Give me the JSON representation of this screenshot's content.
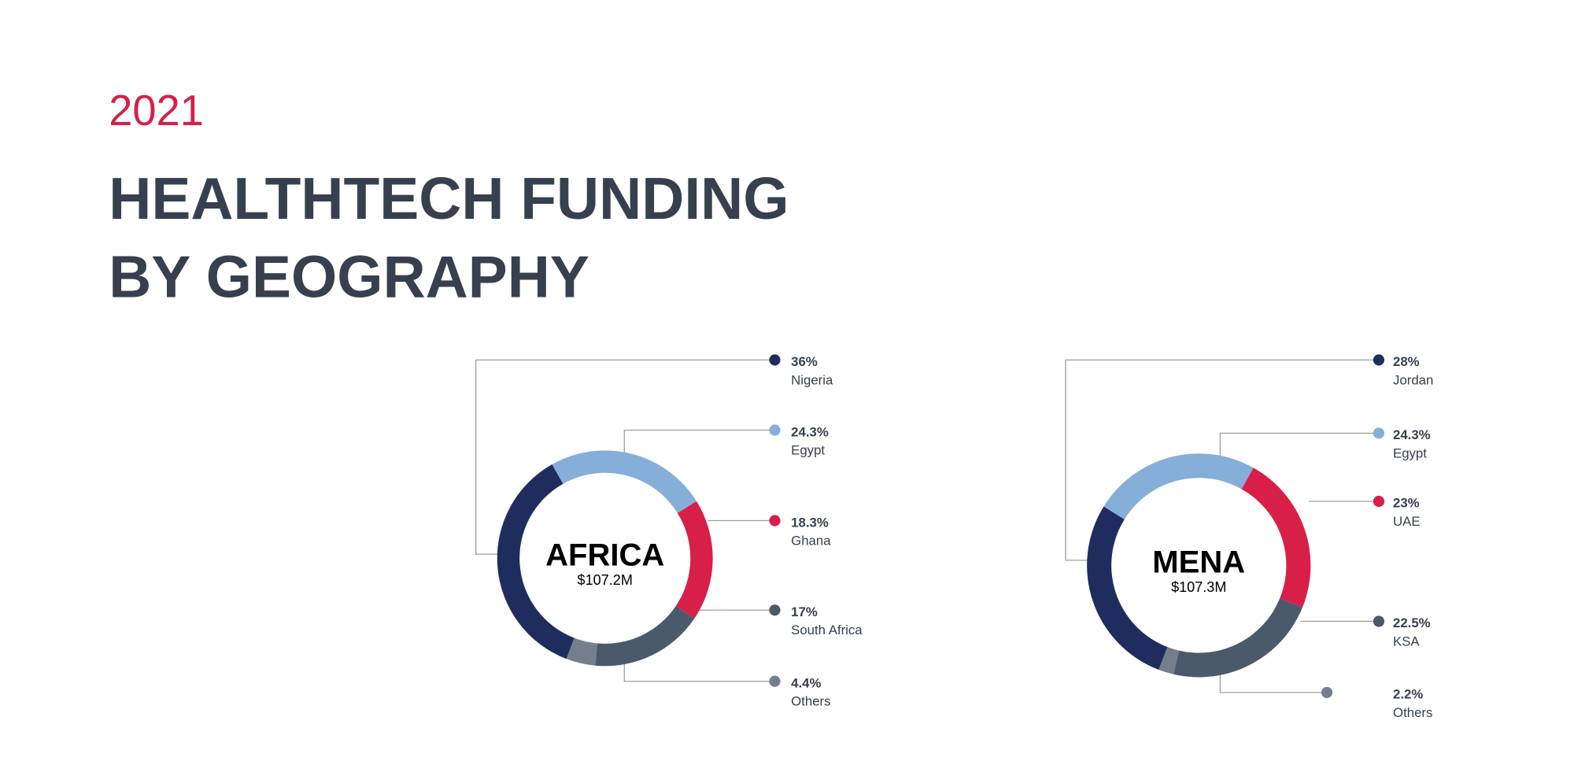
{
  "header": {
    "kicker": "2021",
    "title": [
      "HEALTHTECH FUNDING",
      "BY GEOGRAPHY"
    ]
  },
  "chart_data": [
    {
      "type": "donut",
      "center_title": "AFRICA",
      "center_label": "$107.2M",
      "categories": [
        "Nigeria",
        "Egypt",
        "Ghana",
        "South Africa",
        "Others"
      ],
      "values": [
        36,
        24.3,
        18.3,
        17,
        4.4
      ],
      "value_labels": [
        "36%",
        "24.3%",
        "18.3%",
        "17%",
        "4.4%"
      ],
      "colors": [
        "#1f2d5e",
        "#85afd9",
        "#d81f48",
        "#4a5a6a",
        "#737f8c"
      ]
    },
    {
      "type": "donut",
      "center_title": "MENA",
      "center_label": "$107.3M",
      "categories": [
        "Jordan",
        "Egypt",
        "UAE",
        "KSA",
        "Others"
      ],
      "values": [
        28,
        24.3,
        23,
        22.5,
        2.2
      ],
      "value_labels": [
        "28%",
        "24.3%",
        "23%",
        "22.5%",
        "2.2%"
      ],
      "colors": [
        "#1f2d5e",
        "#85afd9",
        "#d81f48",
        "#4a5a6a",
        "#737f8c"
      ]
    }
  ]
}
